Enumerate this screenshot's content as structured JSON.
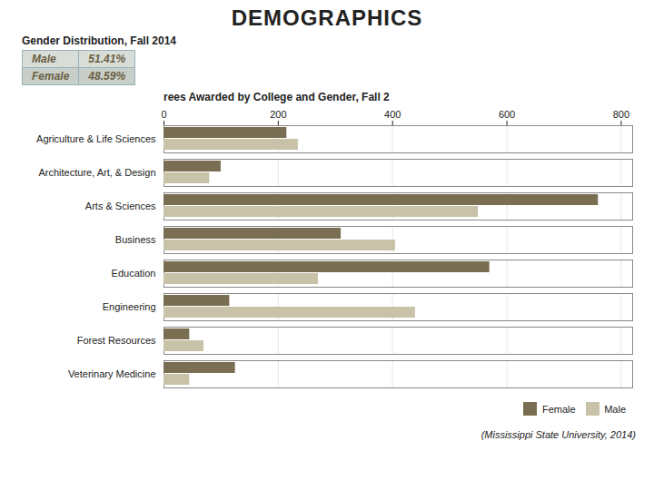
{
  "title": "DEMOGRAPHICS",
  "chart_data": [
    {
      "type": "table",
      "title": "Gender Distribution, Fall 2014",
      "categories": [
        "Male",
        "Female"
      ],
      "values": [
        51.41,
        48.59
      ],
      "value_labels": [
        "51.41%",
        "48.59%"
      ]
    },
    {
      "type": "bar",
      "orientation": "horizontal",
      "title": "rees Awarded by College and Gender, Fall 2",
      "categories": [
        "Agriculture & Life Sciences",
        "Architecture, Art, & Design",
        "Arts & Sciences",
        "Business",
        "Education",
        "Engineering",
        "Forest Resources",
        "Veterinary Medicine"
      ],
      "series": [
        {
          "name": "Female",
          "color": "#7a6e52",
          "values": [
            215,
            100,
            760,
            310,
            570,
            115,
            45,
            125
          ]
        },
        {
          "name": "Male",
          "color": "#c8c2a8",
          "values": [
            235,
            80,
            550,
            405,
            270,
            440,
            70,
            45
          ]
        }
      ],
      "xlim": [
        0,
        820
      ],
      "xticks": [
        0,
        200,
        400,
        600,
        800
      ],
      "grid": true,
      "legend": "lower right",
      "annotations": [
        "(Mississippi State University, 2014)"
      ]
    }
  ]
}
